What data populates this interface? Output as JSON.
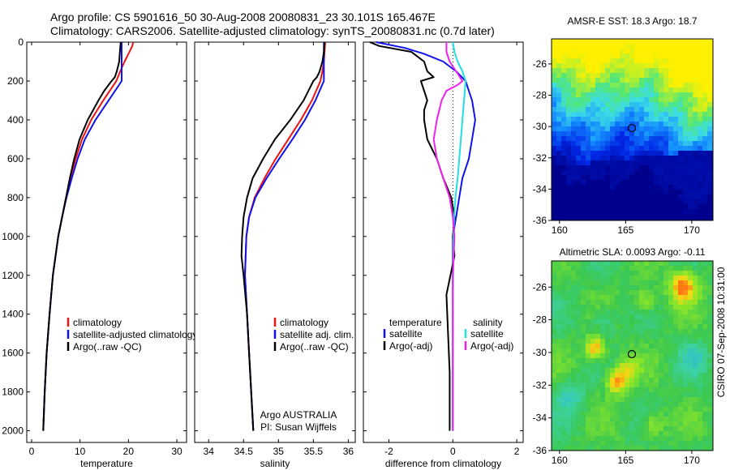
{
  "header": {
    "line1": "Argo profile: CS 5901616_50 30-Aug-2008 20080831_23 30.101S 165.467E",
    "line2": "Climatology: CARS2006. Satellite-adjusted climatology: synTS_20080831.nc (0.7d later)"
  },
  "side_label": "CSIRO 07-Sep-2008 10:31:00",
  "colors": {
    "climatology": "#ee1111",
    "satellite": "#1111ee",
    "argo": "#000000",
    "sat_salinity": "#22e0e0",
    "argo_salinity": "#ee22ee",
    "marker": "#000000"
  },
  "chart_data": [
    {
      "type": "line",
      "id": "temperature",
      "xlabel": "temperature",
      "ylabel": "",
      "xlim": [
        -1,
        32
      ],
      "ylim": [
        2060,
        0
      ],
      "xticks": [
        "0",
        "10",
        "20",
        "30"
      ],
      "yticks": [
        "0",
        "200",
        "400",
        "600",
        "800",
        "1000",
        "1200",
        "1400",
        "1600",
        "1800",
        "2000"
      ],
      "legend": {
        "placement": "lower-right",
        "entries": [
          "climatology",
          "satellite-adjusted climatology",
          "Argo(..raw -QC)"
        ]
      },
      "series": [
        {
          "name": "climatology",
          "color": "climatology",
          "depth": [
            0,
            20,
            50,
            100,
            150,
            200,
            300,
            400,
            500,
            600,
            700,
            800,
            900,
            1000,
            1200,
            1400,
            1600,
            1800,
            2000
          ],
          "values": [
            21.0,
            20.8,
            20.2,
            19.2,
            18.3,
            17.5,
            14.8,
            12.3,
            10.4,
            9.1,
            8.0,
            7.1,
            6.3,
            5.5,
            4.4,
            3.7,
            3.1,
            2.7,
            2.4
          ]
        },
        {
          "name": "satellite-adjusted climatology",
          "color": "satellite",
          "depth": [
            0,
            20,
            50,
            100,
            150,
            200,
            300,
            400,
            500,
            600,
            700,
            800,
            900,
            1000,
            1200,
            1400,
            1600,
            1800,
            2000
          ],
          "values": [
            18.6,
            18.6,
            18.6,
            18.6,
            18.6,
            18.6,
            15.9,
            13.2,
            11.0,
            9.5,
            8.3,
            7.2,
            6.3,
            5.5,
            4.4,
            3.7,
            3.1,
            2.7,
            2.4
          ]
        },
        {
          "name": "Argo(..raw -QC)",
          "color": "argo",
          "depth": [
            0,
            30,
            60,
            100,
            150,
            180,
            200,
            250,
            300,
            400,
            500,
            600,
            700,
            800,
            900,
            1000,
            1200,
            1400,
            1600,
            1800,
            2000
          ],
          "values": [
            18.4,
            18.3,
            18.2,
            18.1,
            17.6,
            17.2,
            16.5,
            15.0,
            13.8,
            11.6,
            9.9,
            8.8,
            7.9,
            7.1,
            6.3,
            5.5,
            4.4,
            3.7,
            3.1,
            2.7,
            2.4
          ]
        }
      ]
    },
    {
      "type": "line",
      "id": "salinity",
      "xlabel": "salinity",
      "ylabel": "",
      "xlim": [
        33.8,
        36.1
      ],
      "ylim": [
        2060,
        0
      ],
      "xticks": [
        "34",
        "34.5",
        "35",
        "35.5",
        "36"
      ],
      "legend": {
        "placement": "lower-right",
        "entries": [
          "climatology",
          "satellite adj. clim.",
          "Argo(..raw -QC)"
        ]
      },
      "annotation": [
        "Argo AUSTRALIA",
        "PI: Susan Wijffels"
      ],
      "series": [
        {
          "name": "climatology",
          "color": "climatology",
          "depth": [
            0,
            50,
            100,
            150,
            200,
            300,
            400,
            500,
            600,
            700,
            800,
            900,
            1000,
            1200,
            1400,
            1600,
            1800,
            2000
          ],
          "values": [
            35.67,
            35.66,
            35.65,
            35.63,
            35.6,
            35.48,
            35.32,
            35.14,
            34.96,
            34.8,
            34.66,
            34.58,
            34.54,
            34.52,
            34.55,
            34.58,
            34.61,
            34.64
          ]
        },
        {
          "name": "satellite adj. clim.",
          "color": "satellite",
          "depth": [
            0,
            50,
            100,
            150,
            200,
            300,
            400,
            500,
            600,
            700,
            800,
            900,
            1000,
            1200,
            1400,
            1600,
            1800,
            2000
          ],
          "values": [
            35.65,
            35.65,
            35.65,
            35.65,
            35.65,
            35.53,
            35.38,
            35.2,
            35.01,
            34.83,
            34.67,
            34.58,
            34.54,
            34.52,
            34.55,
            34.58,
            34.61,
            34.64
          ]
        },
        {
          "name": "Argo(..raw -QC)",
          "color": "argo",
          "depth": [
            0,
            50,
            100,
            150,
            180,
            200,
            300,
            400,
            500,
            600,
            700,
            800,
            900,
            1000,
            1100,
            1200,
            1400,
            1600,
            1800,
            2000
          ],
          "values": [
            35.66,
            35.65,
            35.63,
            35.59,
            35.55,
            35.5,
            35.36,
            35.17,
            34.95,
            34.78,
            34.63,
            34.55,
            34.5,
            34.48,
            34.47,
            34.5,
            34.55,
            34.58,
            34.61,
            34.64
          ]
        }
      ]
    },
    {
      "type": "line",
      "id": "difference",
      "xlabel": "difference from climatology",
      "ylabel": "",
      "xlim": [
        -2.8,
        2.2
      ],
      "ylim": [
        2060,
        0
      ],
      "xticks": [
        "-2",
        "0",
        "2"
      ],
      "legend": {
        "placement": "lower",
        "titles": [
          "temperature",
          "salinity"
        ],
        "entries": [
          "satellite",
          "Argo(-adj)",
          "satellite",
          "Argo(-adj)"
        ]
      },
      "series": [
        {
          "name": "temperature satellite",
          "color": "satellite",
          "depth": [
            0,
            30,
            60,
            100,
            150,
            200,
            250,
            300,
            400,
            500,
            600,
            700,
            800,
            900,
            1000,
            1200,
            1400,
            1600,
            1800,
            2000
          ],
          "values": [
            -2.4,
            -1.5,
            -0.9,
            -0.3,
            0.1,
            0.4,
            0.5,
            0.6,
            0.7,
            0.6,
            0.5,
            0.3,
            0.2,
            0.1,
            0.0,
            0.0,
            0.0,
            0.0,
            0.0,
            0.0
          ]
        },
        {
          "name": "temperature Argo(-adj)",
          "color": "argo",
          "depth": [
            0,
            20,
            50,
            100,
            150,
            180,
            200,
            250,
            300,
            350,
            400,
            500,
            600,
            700,
            800,
            900,
            1000,
            1100,
            1300,
            1500,
            1700,
            1900,
            2000
          ],
          "values": [
            -2.6,
            -2.3,
            -1.3,
            -0.9,
            -0.8,
            -0.6,
            -1.0,
            -0.9,
            -0.8,
            -0.9,
            -0.9,
            -0.8,
            -0.5,
            -0.3,
            -0.05,
            0.05,
            0.0,
            0.05,
            -0.2,
            -0.15,
            -0.1,
            -0.1,
            -0.1
          ]
        },
        {
          "name": "salinity satellite",
          "color": "sat_salinity",
          "depth": [
            0,
            50,
            100,
            150,
            200,
            300,
            400,
            500,
            600,
            700,
            800,
            900,
            1000,
            1200,
            1400,
            1600,
            1800,
            2000
          ],
          "values": [
            0.0,
            0.05,
            0.15,
            0.3,
            0.4,
            0.35,
            0.3,
            0.25,
            0.2,
            0.15,
            0.08,
            0.04,
            0.02,
            0.01,
            0.0,
            0.0,
            0.0,
            0.0
          ]
        },
        {
          "name": "salinity Argo(-adj)",
          "color": "argo_salinity",
          "depth": [
            0,
            50,
            100,
            150,
            200,
            220,
            250,
            300,
            400,
            500,
            600,
            700,
            800,
            900,
            1000,
            1200,
            1400,
            1600,
            1800,
            2000
          ],
          "values": [
            -0.2,
            -0.2,
            -0.1,
            0.1,
            0.3,
            0.15,
            -0.2,
            -0.35,
            -0.5,
            -0.6,
            -0.5,
            -0.3,
            -0.1,
            0.0,
            0.05,
            0.0,
            0.0,
            0.0,
            0.0,
            0.0
          ]
        }
      ]
    },
    {
      "type": "heatmap",
      "id": "sst_map",
      "title": "AMSR-E SST: 18.3 Argo: 18.7",
      "xlim": [
        159.4,
        171.6
      ],
      "ylim": [
        -36,
        -24.4
      ],
      "xticks": [
        "160",
        "165",
        "170"
      ],
      "yticks": [
        "-26",
        "-28",
        "-30",
        "-32",
        "-34",
        "-36"
      ],
      "marker": {
        "lon": 165.47,
        "lat": -30.1
      }
    },
    {
      "type": "heatmap",
      "id": "sla_map",
      "title": "Altimetric SLA: 0.0093 Argo: -0.11",
      "xlim": [
        159.4,
        171.6
      ],
      "ylim": [
        -36,
        -24.4
      ],
      "xticks": [
        "160",
        "165",
        "170"
      ],
      "yticks": [
        "-26",
        "-28",
        "-30",
        "-32",
        "-34",
        "-36"
      ],
      "marker": {
        "lon": 165.47,
        "lat": -30.1
      }
    }
  ]
}
